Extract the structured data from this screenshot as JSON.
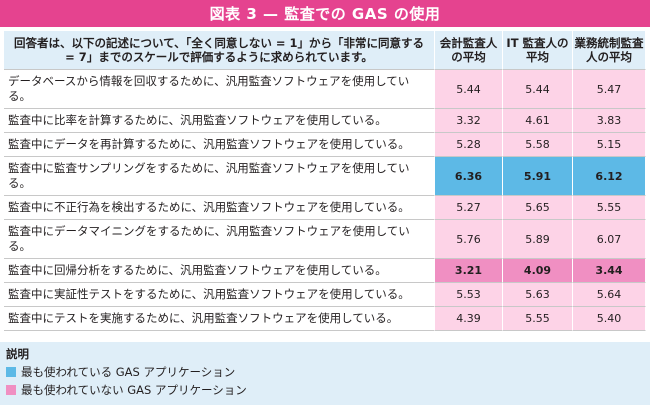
{
  "title": "図表 3 — 監査での GAS の使用",
  "header": {
    "question": "回答者は、以下の記述について、「全く同意しない = 1」から「非常に同意する = 7」までのスケールで評価するように求められています。",
    "columns": [
      "会計監査人の平均",
      "IT 監査人の平均",
      "業務統制監査人の平均"
    ]
  },
  "rows": [
    {
      "statement": "データベースから情報を回収するために、汎用監査ソフトウェアを使用している。",
      "values": [
        "5.44",
        "5.44",
        "5.47"
      ],
      "highlight": ""
    },
    {
      "statement": "監査中に比率を計算するために、汎用監査ソフトウェアを使用している。",
      "values": [
        "3.32",
        "4.61",
        "3.83"
      ],
      "highlight": ""
    },
    {
      "statement": "監査中にデータを再計算するために、汎用監査ソフトウェアを使用している。",
      "values": [
        "5.28",
        "5.58",
        "5.15"
      ],
      "highlight": ""
    },
    {
      "statement": "監査中に監査サンプリングをするために、汎用監査ソフトウェアを使用している。",
      "values": [
        "6.36",
        "5.91",
        "6.12"
      ],
      "highlight": "most"
    },
    {
      "statement": "監査中に不正行為を検出するために、汎用監査ソフトウェアを使用している。",
      "values": [
        "5.27",
        "5.65",
        "5.55"
      ],
      "highlight": ""
    },
    {
      "statement": "監査中にデータマイニングをするために、汎用監査ソフトウェアを使用している。",
      "values": [
        "5.76",
        "5.89",
        "6.07"
      ],
      "highlight": ""
    },
    {
      "statement": "監査中に回帰分析をするために、汎用監査ソフトウェアを使用している。",
      "values": [
        "3.21",
        "4.09",
        "3.44"
      ],
      "highlight": "least"
    },
    {
      "statement": "監査中に実証性テストをするために、汎用監査ソフトウェアを使用している。",
      "values": [
        "5.53",
        "5.63",
        "5.64"
      ],
      "highlight": ""
    },
    {
      "statement": "監査中にテストを実施するために、汎用監査ソフトウェアを使用している。",
      "values": [
        "4.39",
        "5.55",
        "5.40"
      ],
      "highlight": ""
    }
  ],
  "legend": {
    "title": "説明",
    "items": [
      {
        "label": "最も使われている GAS アプリケーション",
        "color": "#5db9e6"
      },
      {
        "label": "最も使われていない GAS アプリケーション",
        "color": "#f08fc2"
      }
    ]
  },
  "colors": {
    "title_bar": "#e5438f",
    "header_bg": "#dfeef8",
    "value_bg": "#fdd3e7"
  }
}
